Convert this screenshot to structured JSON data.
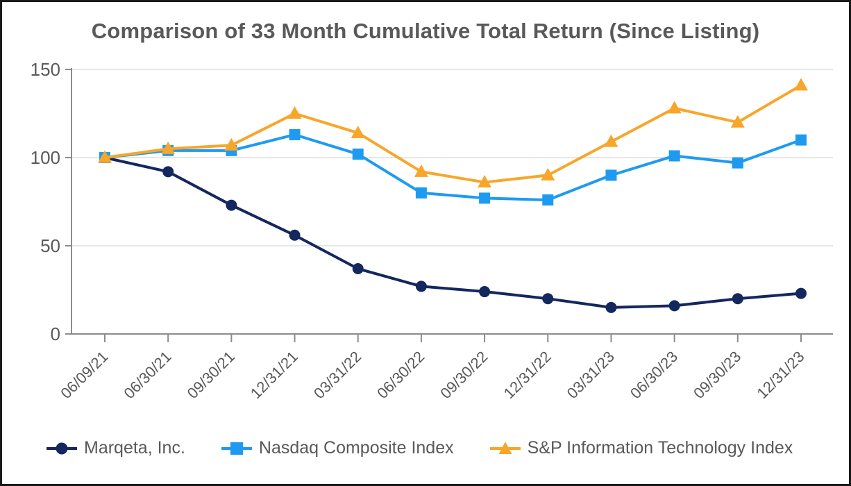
{
  "chart_data": {
    "type": "line",
    "title": "Comparison of 33 Month Cumulative Total Return (Since Listing)",
    "x_labels": [
      "06/09/21",
      "06/30/21",
      "09/30/21",
      "12/31/21",
      "03/31/22",
      "06/30/22",
      "09/30/22",
      "12/31/22",
      "03/31/23",
      "06/30/23",
      "09/30/23",
      "12/31/23"
    ],
    "y_ticks": [
      0,
      50,
      100,
      150
    ],
    "ylim": [
      0,
      150
    ],
    "grid": "horizontal",
    "legend_position": "bottom",
    "series": [
      {
        "name": "Marqeta, Inc.",
        "marker": "circle",
        "color": "#14275E",
        "values": [
          100,
          92,
          73,
          56,
          37,
          27,
          24,
          20,
          15,
          16,
          20,
          23
        ]
      },
      {
        "name": "Nasdaq Composite Index",
        "marker": "square",
        "color": "#1E9BF0",
        "values": [
          100,
          104,
          104,
          113,
          102,
          80,
          77,
          76,
          90,
          101,
          97,
          110
        ]
      },
      {
        "name": "S&P Information Technology Index",
        "marker": "triangle",
        "color": "#F7A62A",
        "values": [
          100,
          105,
          107,
          125,
          114,
          92,
          86,
          90,
          109,
          128,
          120,
          141
        ]
      }
    ],
    "colors": {
      "text": "#595959",
      "gridline": "#DEDEDE",
      "axis": "#8C8C8C",
      "border": "#1A1A1A",
      "background": "#FFFFFF"
    }
  }
}
